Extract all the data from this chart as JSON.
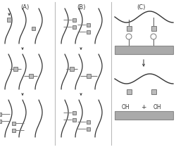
{
  "fig_width": 2.5,
  "fig_height": 2.09,
  "dpi": 100,
  "bg_color": "#ffffff",
  "label_A": "(A)",
  "label_B": "(B)",
  "label_C": "(C)",
  "chain_color": "#333333",
  "surface_color": "#aaaaaa",
  "surface_edge": "#888888",
  "arrow_color": "#444444",
  "text_color": "#333333",
  "linker_color": "#777777",
  "square_face": "#bbbbbb",
  "square_edge": "#777777",
  "circle_face": "#ffffff",
  "divider_color": "#bbbbbb",
  "font_size": 5.5
}
